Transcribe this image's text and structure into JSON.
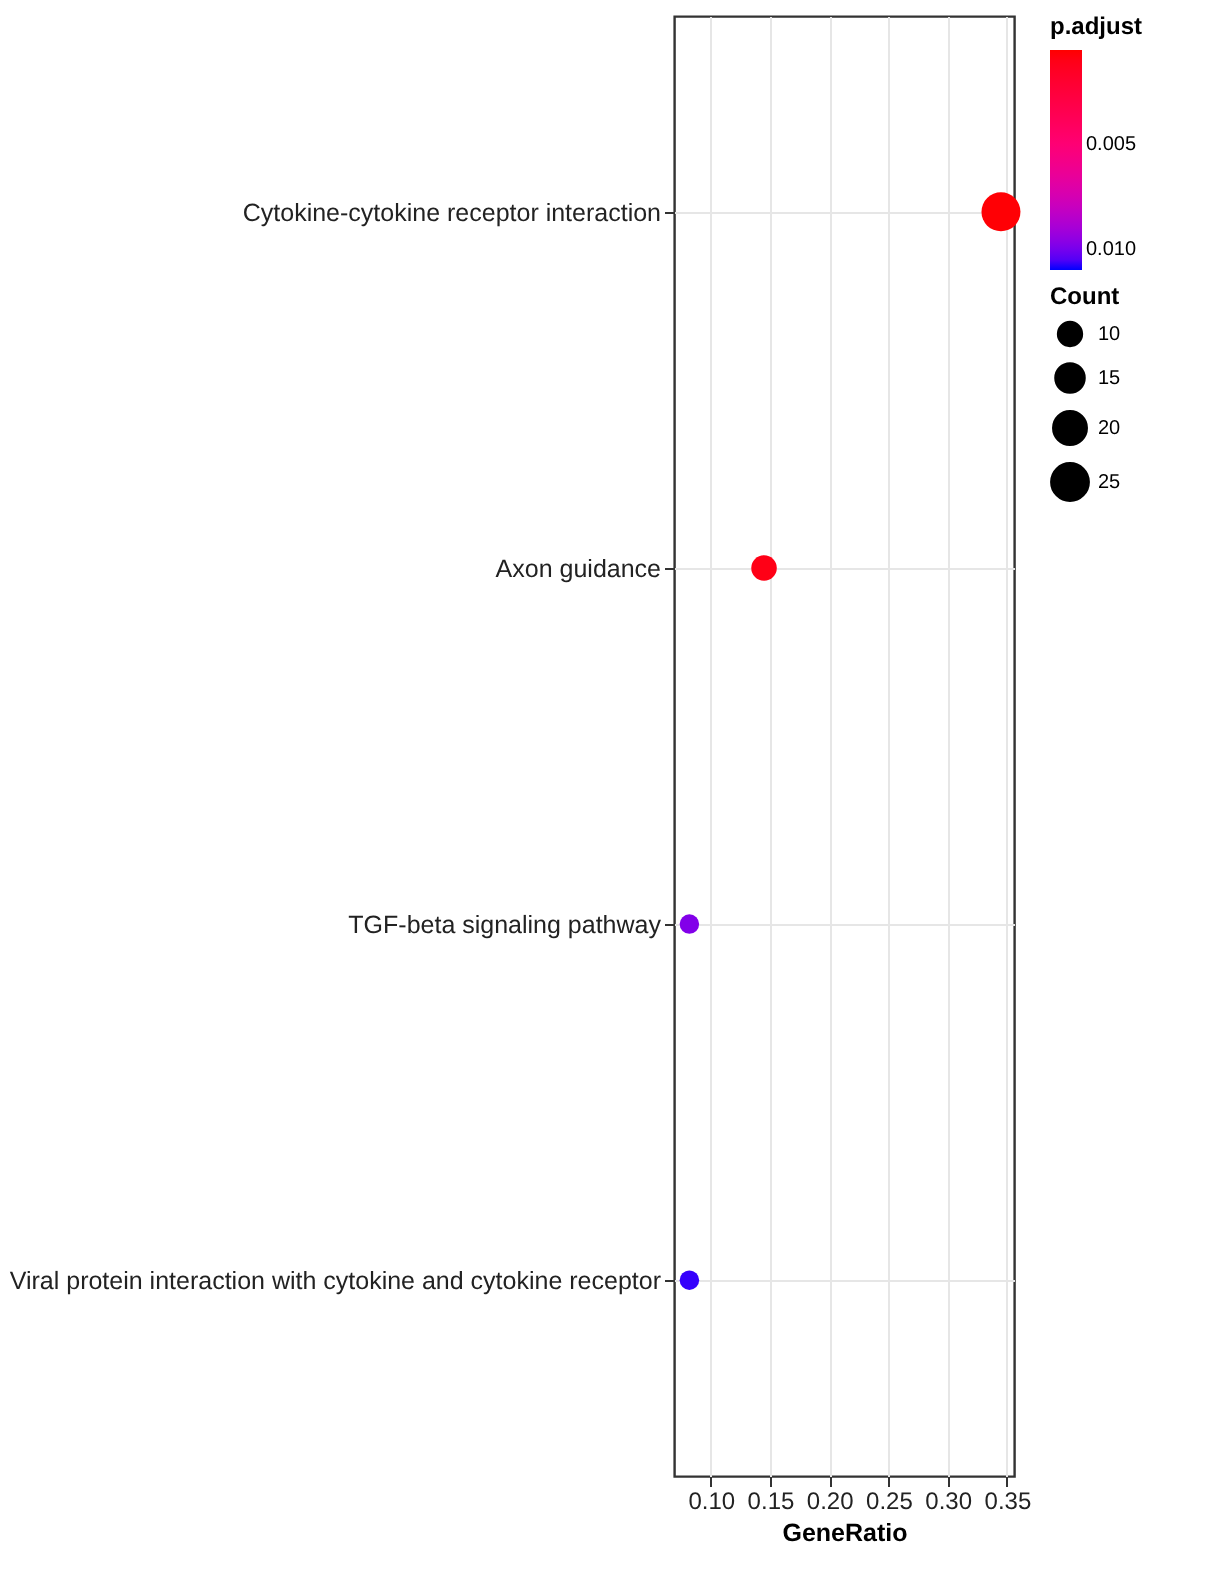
{
  "chart_data": {
    "type": "bubble",
    "xlabel": "GeneRatio",
    "legend_title": "Count",
    "clabel": "p.adjust",
    "categories": [
      "Cytokine-cytokine receptor interaction",
      "Axon guidance",
      "TGF-beta signaling pathway",
      "Viral protein interaction with cytokine and cytokine receptor"
    ],
    "orientation": "horizontal",
    "values": [
      0.345,
      0.145,
      0.082,
      0.082
    ],
    "sizes": [
      28,
      12,
      7,
      7
    ],
    "size_legend": [
      10,
      15,
      20,
      25
    ],
    "cvalues": [
      0.0006,
      0.001,
      0.0098,
      0.0108
    ],
    "clim": [
      0.0005,
      0.011
    ],
    "cticks": [
      {
        "value": 0.005,
        "label": "0.005"
      },
      {
        "value": 0.01,
        "label": "0.010"
      }
    ],
    "xlim": [
      0.069,
      0.356
    ],
    "xticks": [
      {
        "value": 0.1,
        "label": "0.10"
      },
      {
        "value": 0.15,
        "label": "0.15"
      },
      {
        "value": 0.2,
        "label": "0.20"
      },
      {
        "value": 0.25,
        "label": "0.25"
      },
      {
        "value": 0.3,
        "label": "0.30"
      },
      {
        "value": 0.35,
        "label": "0.35"
      }
    ],
    "grid": true
  }
}
